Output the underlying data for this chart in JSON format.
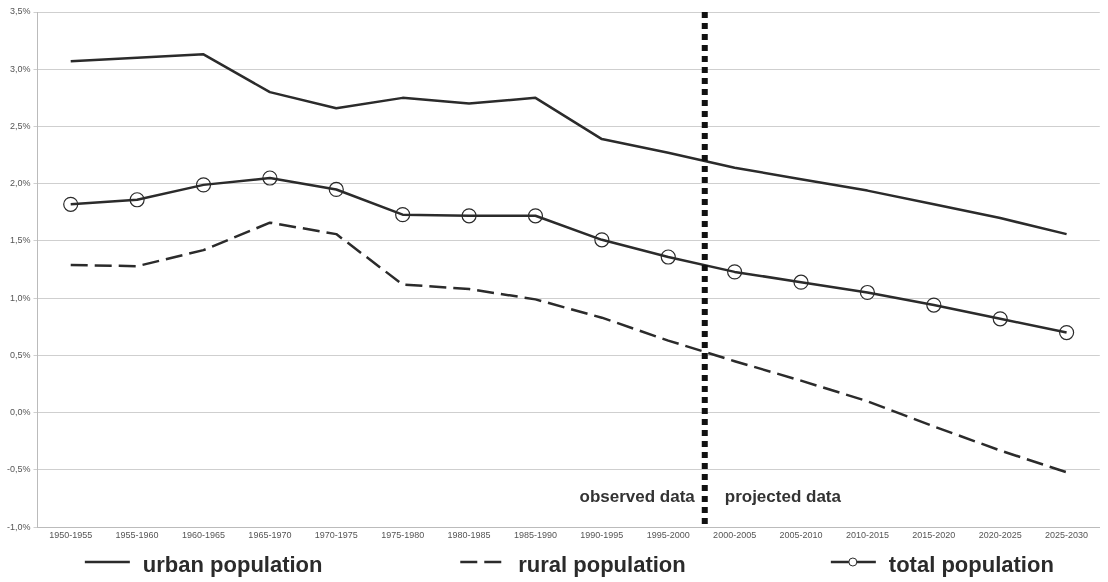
{
  "chart_data": {
    "type": "line",
    "categories": [
      "1950-1955",
      "1955-1960",
      "1960-1965",
      "1965-1970",
      "1970-1975",
      "1975-1980",
      "1980-1985",
      "1985-1990",
      "1990-1995",
      "1995-2000",
      "2000-2005",
      "2005-2010",
      "2010-2015",
      "2015-2020",
      "2020-2025",
      "2025-2030"
    ],
    "series": [
      {
        "name": "urban population",
        "color": "#2b2b2b",
        "line_style": "solid",
        "marker": "none",
        "values": [
          3.07,
          3.1,
          3.13,
          2.8,
          2.66,
          2.75,
          2.7,
          2.75,
          2.39,
          2.27,
          2.14,
          2.04,
          1.94,
          1.82,
          1.7,
          1.56
        ]
      },
      {
        "name": "rural population",
        "color": "#2b2b2b",
        "line_style": "dashed",
        "marker": "none",
        "values": [
          1.29,
          1.28,
          1.42,
          1.66,
          1.56,
          1.12,
          1.08,
          0.99,
          0.83,
          0.63,
          0.45,
          0.28,
          0.1,
          -0.12,
          -0.33,
          -0.52
        ]
      },
      {
        "name": "total population",
        "color": "#2b2b2b",
        "line_style": "solid",
        "marker": "circle",
        "values": [
          1.82,
          1.86,
          1.99,
          2.05,
          1.95,
          1.73,
          1.72,
          1.72,
          1.51,
          1.36,
          1.23,
          1.14,
          1.05,
          0.94,
          0.82,
          0.7
        ]
      }
    ],
    "ylim": [
      -1.0,
      3.5
    ],
    "yticks": [
      {
        "value": -1.0,
        "label": "-1,0%"
      },
      {
        "value": -0.5,
        "label": "-0,5%"
      },
      {
        "value": 0,
        "label": "0,0%"
      },
      {
        "value": 0.5,
        "label": "0,5%"
      },
      {
        "value": 1.0,
        "label": "1,0%"
      },
      {
        "value": 1.5,
        "label": "1,5%"
      },
      {
        "value": 2.0,
        "label": "2,0%"
      },
      {
        "value": 2.5,
        "label": "2,5%"
      },
      {
        "value": 3.0,
        "label": "3,0%"
      },
      {
        "value": 3.5,
        "label": "3,5%"
      }
    ],
    "grid": "y",
    "legend": "bottom",
    "ref_lines": [
      {
        "axis": "x",
        "value": "2000-2005",
        "color": "#111111",
        "line_style": "dotted"
      }
    ],
    "annotations": [
      "observed data",
      "projected data"
    ]
  }
}
